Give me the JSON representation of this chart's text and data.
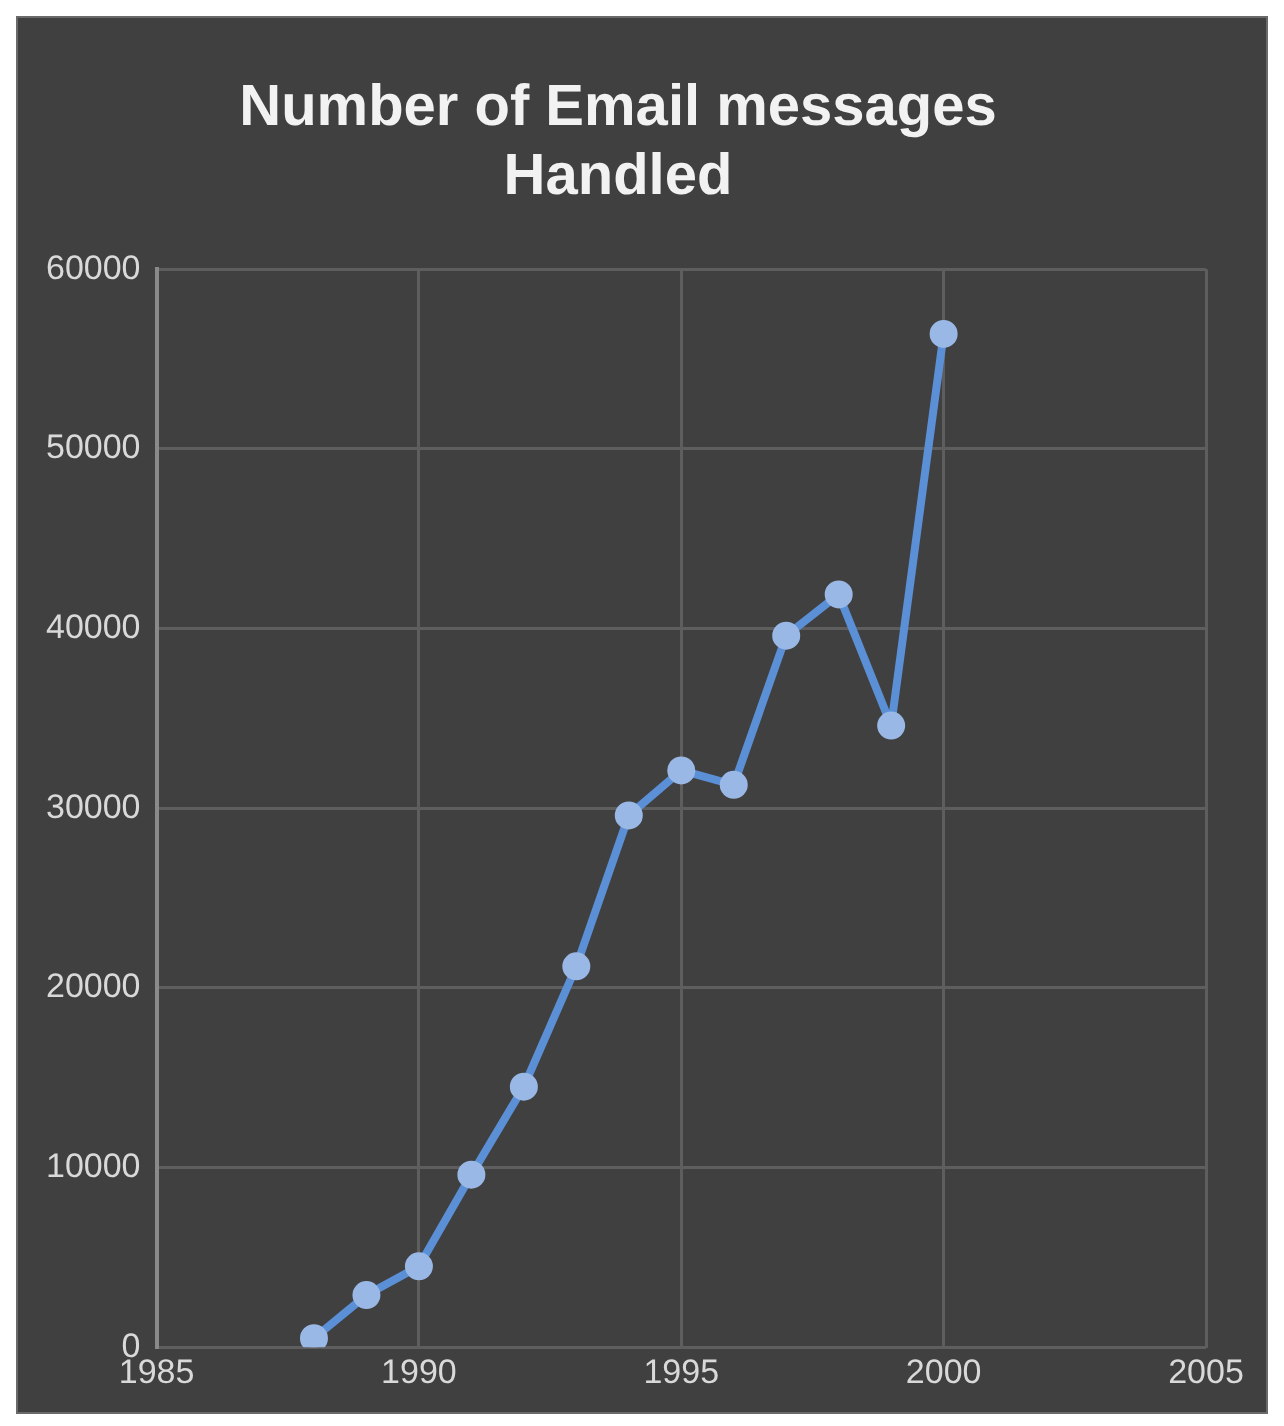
{
  "chart_data": {
    "type": "line",
    "title": "Number of Email messages Handled",
    "x": [
      1988,
      1989,
      1990,
      1991,
      1992,
      1993,
      1994,
      1995,
      1996,
      1997,
      1998,
      1999,
      2000
    ],
    "series": [
      {
        "color": "#5b8fd6",
        "values": [
          500,
          2900,
          4500,
          9600,
          14500,
          21200,
          29600,
          32100,
          31300,
          39600,
          41900,
          34600,
          56400
        ]
      }
    ],
    "xlim": [
      1985,
      2005
    ],
    "xticks": [
      1985,
      1990,
      1995,
      2000,
      2005
    ],
    "ylim": [
      0,
      60000
    ],
    "yticks": [
      0,
      10000,
      20000,
      30000,
      40000,
      50000,
      60000
    ],
    "grid": true,
    "legend": false,
    "marker": "circle",
    "line_style": "solid"
  }
}
